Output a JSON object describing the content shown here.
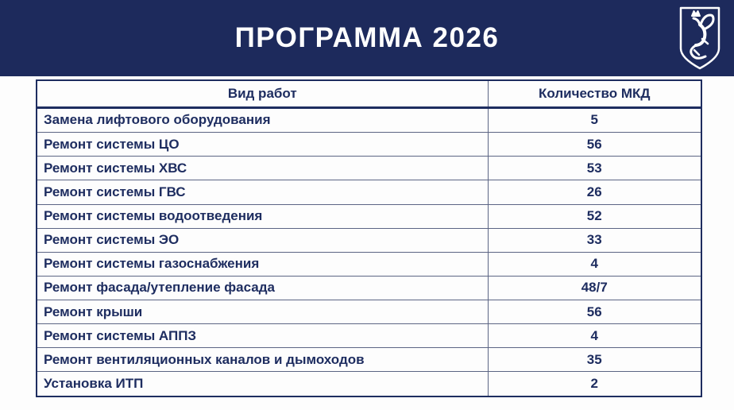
{
  "slide": {
    "title": "ПРОГРАММА 2026",
    "logo": "kazan-coat-of-arms-zilant-dragon"
  },
  "colors": {
    "banner_navy": "#1d2a5c",
    "text_navy": "#1e2d60",
    "inner_border": "#5c6584",
    "background": "#fdfdfd",
    "title_white": "#ffffff"
  },
  "table": {
    "columns": [
      "Вид работ",
      "Количество МКД"
    ],
    "rows": [
      {
        "work": "Замена лифтового оборудования",
        "count": "5"
      },
      {
        "work": "Ремонт системы ЦО",
        "count": "56"
      },
      {
        "work": "Ремонт системы ХВС",
        "count": "53"
      },
      {
        "work": "Ремонт системы ГВС",
        "count": "26"
      },
      {
        "work": "Ремонт системы водоотведения",
        "count": "52"
      },
      {
        "work": "Ремонт системы ЭО",
        "count": "33"
      },
      {
        "work": "Ремонт системы газоснабжения",
        "count": "4"
      },
      {
        "work": "Ремонт фасада/утепление фасада",
        "count": "48/7"
      },
      {
        "work": "Ремонт крыши",
        "count": "56"
      },
      {
        "work": "Ремонт системы АППЗ",
        "count": "4"
      },
      {
        "work": "Ремонт вентиляционных каналов и дымоходов",
        "count": "35"
      },
      {
        "work": "Установка ИТП",
        "count": "2"
      }
    ]
  }
}
